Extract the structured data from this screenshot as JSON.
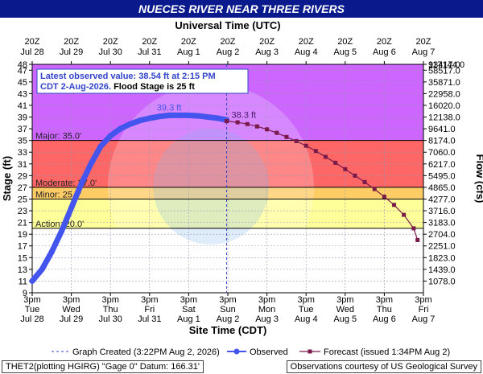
{
  "title": "NUECES RIVER NEAR THREE RIVERS",
  "chart_data": {
    "type": "line",
    "top_axis_label": "Universal Time (UTC)",
    "xlabel": "Site Time (CDT)",
    "ylabel": "Stage (ft)",
    "y2label": "Flow (cfs)",
    "x_ticks_top": [
      {
        "time": "20Z",
        "date": "Jul 28"
      },
      {
        "time": "20Z",
        "date": "Jul 29"
      },
      {
        "time": "20Z",
        "date": "Jul 30"
      },
      {
        "time": "20Z",
        "date": "Jul 31"
      },
      {
        "time": "20Z",
        "date": "Aug 1"
      },
      {
        "time": "20Z",
        "date": "Aug 2"
      },
      {
        "time": "20Z",
        "date": "Aug 3"
      },
      {
        "time": "20Z",
        "date": "Aug 4"
      },
      {
        "time": "20Z",
        "date": "Aug 5"
      },
      {
        "time": "20Z",
        "date": "Aug 6"
      },
      {
        "time": "20Z",
        "date": "Aug 7"
      }
    ],
    "x_ticks_bottom": [
      {
        "time": "3pm",
        "day": "Tue",
        "date": "Jul 28"
      },
      {
        "time": "3pm",
        "day": "Wed",
        "date": "Jul 29"
      },
      {
        "time": "3pm",
        "day": "Thu",
        "date": "Jul 30"
      },
      {
        "time": "3pm",
        "day": "Fri",
        "date": "Jul 31"
      },
      {
        "time": "3pm",
        "day": "Sat",
        "date": "Aug 1"
      },
      {
        "time": "3pm",
        "day": "Sun",
        "date": "Aug 2"
      },
      {
        "time": "3pm",
        "day": "Mon",
        "date": "Aug 3"
      },
      {
        "time": "3pm",
        "day": "Tue",
        "date": "Aug 4"
      },
      {
        "time": "3pm",
        "day": "Wed",
        "date": "Aug 5"
      },
      {
        "time": "3pm",
        "day": "Thu",
        "date": "Aug 6"
      },
      {
        "time": "3pm",
        "day": "Fri",
        "date": "Aug 7"
      }
    ],
    "x_range_days": [
      0,
      10
    ],
    "ylim": [
      9,
      48
    ],
    "y_ticks": [
      11,
      13,
      15,
      17,
      19,
      21,
      23,
      25,
      27,
      29,
      31,
      33,
      35,
      37,
      39,
      41,
      43,
      45,
      47
    ],
    "y_ticks_minor": [
      9,
      48
    ],
    "y2_ticks": [
      {
        "stage": 11,
        "flow": "1078.0"
      },
      {
        "stage": 13,
        "flow": "1439.0"
      },
      {
        "stage": 15,
        "flow": "1823.0"
      },
      {
        "stage": 17,
        "flow": "2251.0"
      },
      {
        "stage": 19,
        "flow": "2704.0"
      },
      {
        "stage": 21,
        "flow": "3183.0"
      },
      {
        "stage": 23,
        "flow": "3716.0"
      },
      {
        "stage": 25,
        "flow": "4277.0"
      },
      {
        "stage": 27,
        "flow": "4865.0"
      },
      {
        "stage": 29,
        "flow": "5495.0"
      },
      {
        "stage": 31,
        "flow": "6217.0"
      },
      {
        "stage": 33,
        "flow": "7060.0"
      },
      {
        "stage": 35,
        "flow": "8174.0"
      },
      {
        "stage": 37,
        "flow": "9641.0"
      },
      {
        "stage": 39,
        "flow": "12138.0"
      },
      {
        "stage": 41,
        "flow": "16020.0"
      },
      {
        "stage": 43,
        "flow": "22958.0"
      },
      {
        "stage": 45,
        "flow": "35871.0"
      },
      {
        "stage": 47,
        "flow": "58517.0"
      },
      {
        "stage": 49,
        "flow": "93417.0"
      },
      {
        "stage": 51,
        "flow": "117144.0"
      }
    ],
    "zones": [
      {
        "name": "Action",
        "label": "Action: 20.0'",
        "from": 20,
        "to": 25,
        "color": "#ffff99"
      },
      {
        "name": "Minor",
        "label": "Minor: 25.0'",
        "from": 25,
        "to": 27,
        "color": "#ffcc66"
      },
      {
        "name": "Moderate",
        "label": "Moderate: 27.0'",
        "from": 27,
        "to": 35,
        "color": "#ff6666"
      },
      {
        "name": "Major",
        "label": "Major: 35.0'",
        "from": 35,
        "to": 48,
        "color": "#cc66ff"
      }
    ],
    "info_box": {
      "line1_prefix": "Latest observed value: ",
      "line1_value": "38.54 ft at 2:15 PM",
      "line2_date": "CDT 2-Aug-2026.",
      "line2_flood": " Flood Stage is 25 ft"
    },
    "peak_label": "39.3 ft",
    "forecast_peak_label": "38.3 ft",
    "graph_created_day": 4.97,
    "series": [
      {
        "name": "Observed",
        "color": "#4455ee",
        "x": [
          0.0,
          0.25,
          0.5,
          0.75,
          1.0,
          1.25,
          1.5,
          1.75,
          2.0,
          2.25,
          2.5,
          2.75,
          3.0,
          3.25,
          3.5,
          3.75,
          4.0,
          4.25,
          4.5,
          4.75,
          4.97
        ],
        "y": [
          11.0,
          13.0,
          16.0,
          19.5,
          23.5,
          27.5,
          31.0,
          34.0,
          35.8,
          37.0,
          37.8,
          38.4,
          38.8,
          39.1,
          39.3,
          39.3,
          39.3,
          39.2,
          39.0,
          38.8,
          38.5
        ]
      },
      {
        "name": "Forecast (issued 1:34PM Aug 2)",
        "color": "#7a1a4a",
        "x": [
          4.97,
          5.25,
          5.5,
          5.75,
          6.0,
          6.25,
          6.5,
          6.75,
          7.0,
          7.25,
          7.5,
          7.75,
          8.0,
          8.25,
          8.5,
          8.75,
          9.0,
          9.25,
          9.5,
          9.75,
          9.85
        ],
        "y": [
          38.3,
          38.1,
          37.8,
          37.4,
          36.9,
          36.3,
          35.6,
          34.9,
          34.1,
          33.2,
          32.2,
          31.2,
          30.1,
          29.0,
          27.9,
          26.7,
          25.4,
          24.0,
          22.3,
          20.0,
          18.0
        ]
      }
    ],
    "legend": {
      "graph_created": "Graph Created (3:22PM Aug 2, 2026)",
      "observed": "Observed",
      "forecast": "Forecast (issued 1:34PM Aug 2)"
    }
  },
  "footer": {
    "left": "THET2(plotting HGIRG) \"Gage 0\" Datum: 166.31'",
    "right": "Observations courtesy of US Geological Survey"
  }
}
